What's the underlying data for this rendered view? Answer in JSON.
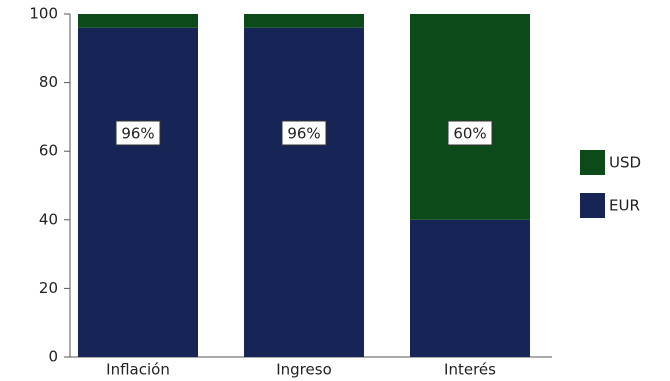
{
  "chart_data": {
    "type": "bar",
    "stacked": true,
    "categories": [
      "Inflación",
      "Ingreso",
      "Interés"
    ],
    "series": [
      {
        "name": "EUR",
        "color": "#162456",
        "values": [
          96,
          96,
          40
        ],
        "value_labels": [
          "96%",
          "96%",
          null
        ]
      },
      {
        "name": "USD",
        "color": "#0d4a1a",
        "values": [
          4,
          4,
          60
        ],
        "value_labels": [
          null,
          null,
          "60%"
        ]
      }
    ],
    "ylim": [
      0,
      100
    ],
    "yticks": [
      0,
      20,
      40,
      60,
      80,
      100
    ],
    "grid": false,
    "legend": "right"
  }
}
